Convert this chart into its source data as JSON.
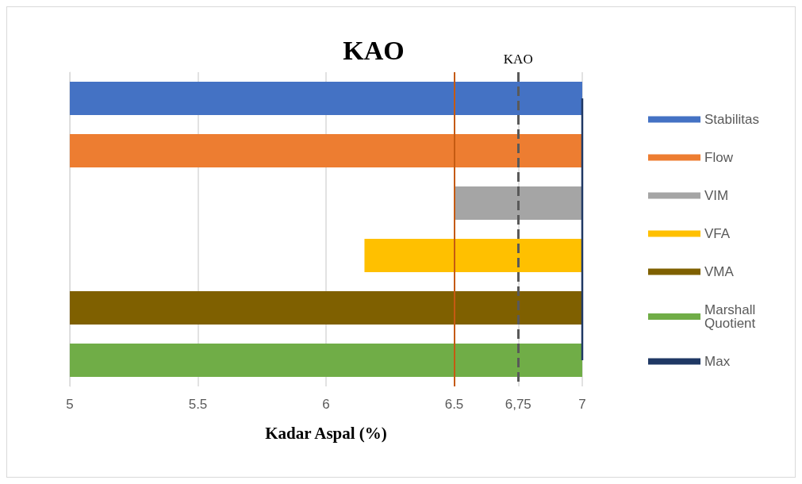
{
  "chart_data": {
    "type": "bar",
    "orientation": "horizontal",
    "title": "KAO",
    "xlabel": "Kadar Aspal (%)",
    "categories": [
      null,
      null,
      null,
      null,
      null,
      null
    ],
    "series": [
      {
        "name": "Stabilitas",
        "color": "#4472c4",
        "values": [
          2,
          null,
          null,
          null,
          null,
          null
        ],
        "base": [
          5,
          null,
          null,
          null,
          null,
          null
        ]
      },
      {
        "name": "Flow",
        "color": "#ed7d31",
        "values": [
          null,
          2,
          null,
          null,
          null,
          null
        ],
        "base": [
          null,
          5,
          null,
          null,
          null,
          null
        ]
      },
      {
        "name": "VIM",
        "color": "#a5a5a5",
        "values": [
          null,
          null,
          0.5,
          null,
          null,
          null
        ],
        "base": [
          null,
          null,
          6.5,
          null,
          null,
          null
        ]
      },
      {
        "name": "VFA",
        "color": "#ffc000",
        "values": [
          null,
          null,
          null,
          0.85,
          null,
          null
        ],
        "base": [
          null,
          null,
          null,
          6.15,
          null,
          null
        ]
      },
      {
        "name": "VMA",
        "color": "#7f6000",
        "values": [
          null,
          null,
          null,
          null,
          2,
          null
        ],
        "base": [
          null,
          null,
          null,
          null,
          5,
          null
        ]
      },
      {
        "name": "Marshall Quotient",
        "color": "#70ad47",
        "values": [
          null,
          null,
          null,
          null,
          null,
          2
        ],
        "base": [
          null,
          null,
          null,
          null,
          null,
          5
        ]
      },
      {
        "name": "Max",
        "type": "line",
        "color": "#1f3864",
        "values": [
          7,
          7,
          7,
          7,
          7,
          7
        ]
      }
    ],
    "xlim": [
      5,
      7
    ],
    "xticks": [
      5,
      5.5,
      6,
      6.5,
      {
        "value": 6.75,
        "label": "6,75"
      },
      7
    ],
    "ref_lines": [
      {
        "axis": "x",
        "value": 6.5,
        "color": "#c55a11",
        "line_style": "solid"
      },
      {
        "axis": "x",
        "value": 6.75,
        "label": "KAO",
        "color": "#595959",
        "line_style": "dashed"
      }
    ],
    "grid": "x",
    "legend": "right"
  }
}
